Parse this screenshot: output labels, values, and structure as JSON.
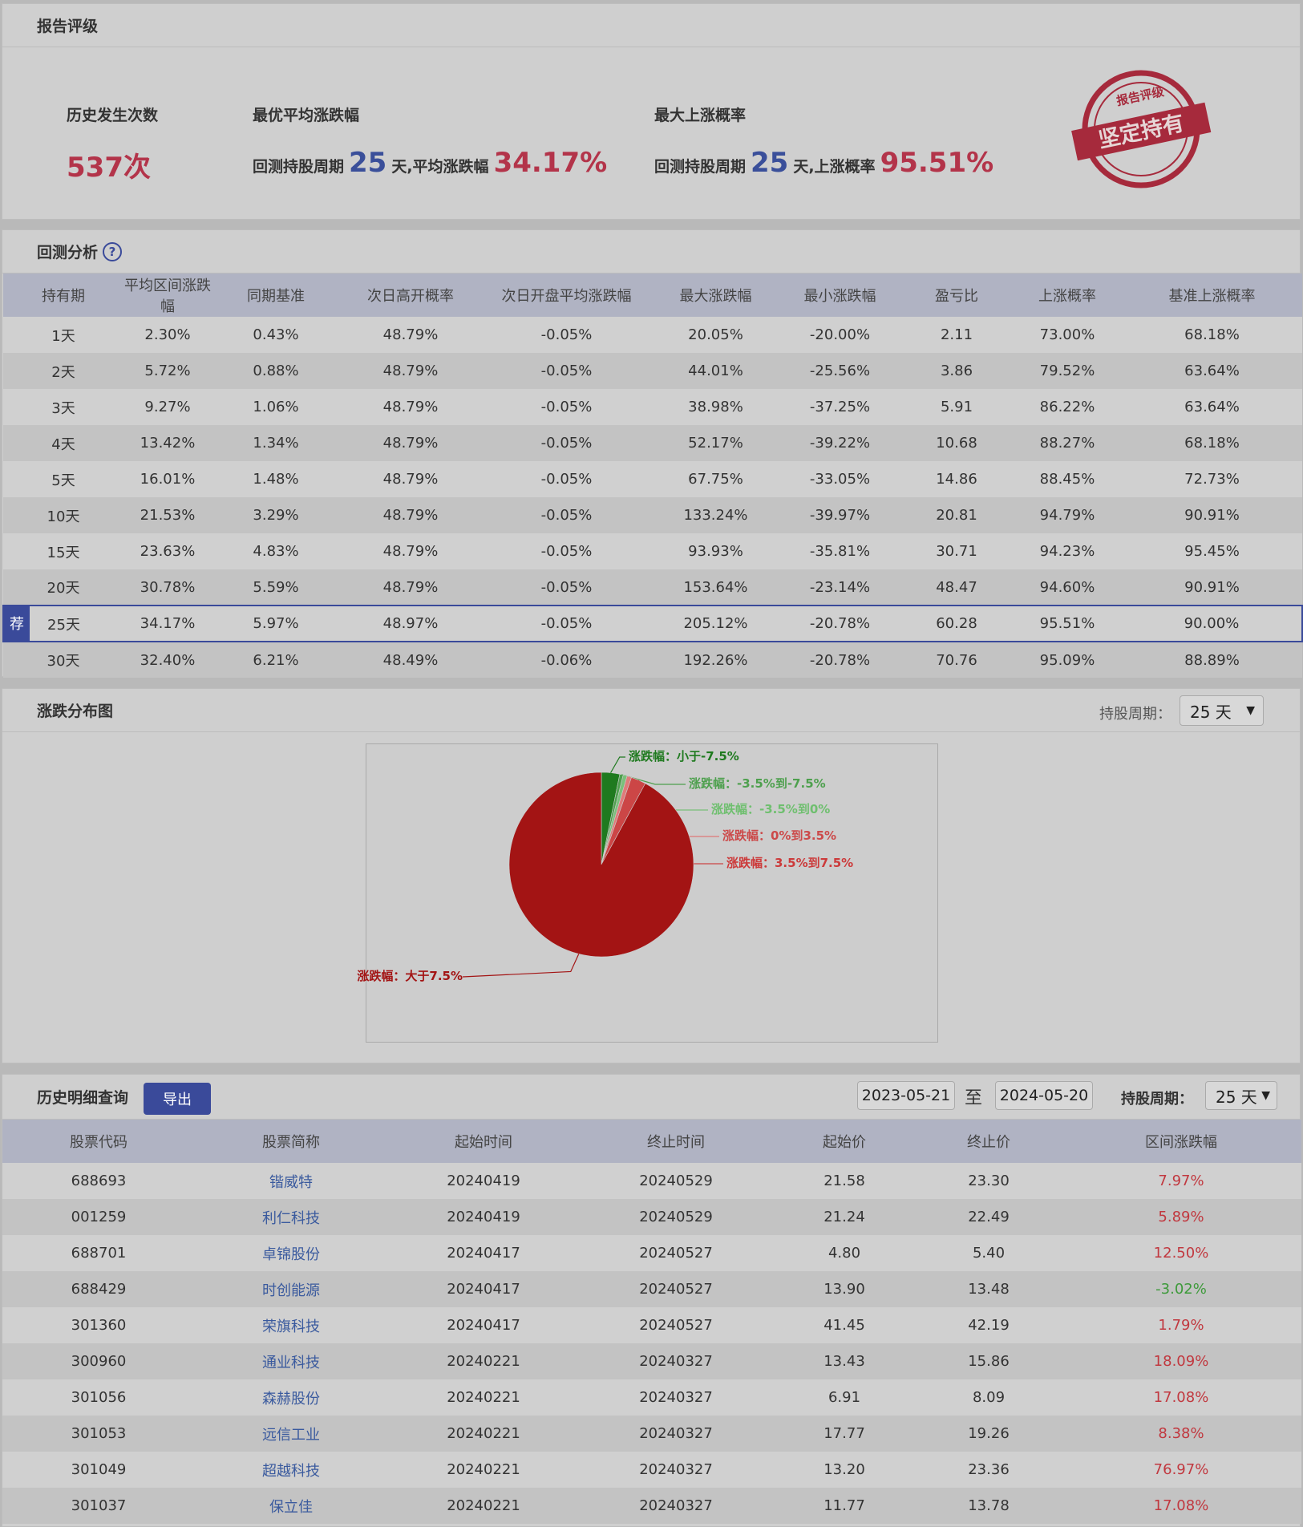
{
  "rating": {
    "title": "报告评级",
    "occurrences_label": "历史发生次数",
    "occurrences_value": "537次",
    "best_avg_label": "最优平均涨跌幅",
    "best_avg_prefix": "回测持股周期",
    "best_avg_days": "25",
    "best_avg_mid": "天,平均涨跌幅",
    "best_avg_value": "34.17%",
    "max_up_label": "最大上涨概率",
    "max_up_prefix": "回测持股周期",
    "max_up_days": "25",
    "max_up_mid": "天,上涨概率",
    "max_up_value": "95.51%",
    "stamp_top": "报告评级",
    "stamp_text": "坚定持有"
  },
  "backtest": {
    "title": "回测分析",
    "help_icon": "question-icon",
    "headers": [
      "持有期",
      "平均区间涨跌幅",
      "同期基准",
      "次日高开概率",
      "次日开盘平均涨跌幅",
      "最大涨跌幅",
      "最小涨跌幅",
      "盈亏比",
      "上涨概率",
      "基准上涨概率"
    ],
    "recommend_badge": "荐",
    "rows": [
      [
        "1天",
        "2.30%",
        "0.43%",
        "48.79%",
        "-0.05%",
        "20.05%",
        "-20.00%",
        "2.11",
        "73.00%",
        "68.18%"
      ],
      [
        "2天",
        "5.72%",
        "0.88%",
        "48.79%",
        "-0.05%",
        "44.01%",
        "-25.56%",
        "3.86",
        "79.52%",
        "63.64%"
      ],
      [
        "3天",
        "9.27%",
        "1.06%",
        "48.79%",
        "-0.05%",
        "38.98%",
        "-37.25%",
        "5.91",
        "86.22%",
        "63.64%"
      ],
      [
        "4天",
        "13.42%",
        "1.34%",
        "48.79%",
        "-0.05%",
        "52.17%",
        "-39.22%",
        "10.68",
        "88.27%",
        "68.18%"
      ],
      [
        "5天",
        "16.01%",
        "1.48%",
        "48.79%",
        "-0.05%",
        "67.75%",
        "-33.05%",
        "14.86",
        "88.45%",
        "72.73%"
      ],
      [
        "10天",
        "21.53%",
        "3.29%",
        "48.79%",
        "-0.05%",
        "133.24%",
        "-39.97%",
        "20.81",
        "94.79%",
        "90.91%"
      ],
      [
        "15天",
        "23.63%",
        "4.83%",
        "48.79%",
        "-0.05%",
        "93.93%",
        "-35.81%",
        "30.71",
        "94.23%",
        "95.45%"
      ],
      [
        "20天",
        "30.78%",
        "5.59%",
        "48.79%",
        "-0.05%",
        "153.64%",
        "-23.14%",
        "48.47",
        "94.60%",
        "90.91%"
      ],
      [
        "25天",
        "34.17%",
        "5.97%",
        "48.97%",
        "-0.05%",
        "205.12%",
        "-20.78%",
        "60.28",
        "95.51%",
        "90.00%"
      ],
      [
        "30天",
        "32.40%",
        "6.21%",
        "48.49%",
        "-0.06%",
        "192.26%",
        "-20.78%",
        "70.76",
        "95.09%",
        "88.89%"
      ]
    ]
  },
  "distribution": {
    "title": "涨跌分布图",
    "period_label": "持股周期：",
    "period_value": "25 天",
    "colors": {
      "dark_green": "#1f7a1f",
      "mid_green": "#3f9a3f",
      "light_green": "#6fbf6f",
      "light_red": "#e07070",
      "mid_red": "#c84a4a",
      "dark_red": "#a31414"
    }
  },
  "chart_data": {
    "type": "pie",
    "categories": [
      "涨跌幅：小于-7.5%",
      "涨跌幅：-3.5%到-7.5%",
      "涨跌幅：-3.5%到0%",
      "涨跌幅：0%到3.5%",
      "涨跌幅：3.5%到7.5%",
      "涨跌幅：大于7.5%"
    ],
    "values": [
      3.2,
      0.6,
      0.7,
      0.8,
      2.6,
      92.1
    ],
    "colors": [
      "#1f7a1f",
      "#4ea04e",
      "#7ac07a",
      "#e07a7a",
      "#cc4646",
      "#a31414"
    ]
  },
  "history": {
    "title": "历史明细查询",
    "export_label": "导出",
    "date_from": "2023-05-21",
    "date_sep": "至",
    "date_to": "2024-05-20",
    "period_label": "持股周期：",
    "period_value": "25 天",
    "headers": [
      "股票代码",
      "股票简称",
      "起始时间",
      "终止时间",
      "起始价",
      "终止价",
      "区间涨跌幅"
    ],
    "rows": [
      [
        "688693",
        "锴威特",
        "20240419",
        "20240529",
        "21.58",
        "23.30",
        "7.97%"
      ],
      [
        "001259",
        "利仁科技",
        "20240419",
        "20240529",
        "21.24",
        "22.49",
        "5.89%"
      ],
      [
        "688701",
        "卓锦股份",
        "20240417",
        "20240527",
        "4.80",
        "5.40",
        "12.50%"
      ],
      [
        "688429",
        "时创能源",
        "20240417",
        "20240527",
        "13.90",
        "13.48",
        "-3.02%"
      ],
      [
        "301360",
        "荣旗科技",
        "20240417",
        "20240527",
        "41.45",
        "42.19",
        "1.79%"
      ],
      [
        "300960",
        "通业科技",
        "20240221",
        "20240327",
        "13.43",
        "15.86",
        "18.09%"
      ],
      [
        "301056",
        "森赫股份",
        "20240221",
        "20240327",
        "6.91",
        "8.09",
        "17.08%"
      ],
      [
        "301053",
        "远信工业",
        "20240221",
        "20240327",
        "17.77",
        "19.26",
        "8.38%"
      ],
      [
        "301049",
        "超越科技",
        "20240221",
        "20240327",
        "13.20",
        "23.36",
        "76.97%"
      ],
      [
        "301037",
        "保立佳",
        "20240221",
        "20240327",
        "11.77",
        "13.78",
        "17.08%"
      ]
    ]
  }
}
